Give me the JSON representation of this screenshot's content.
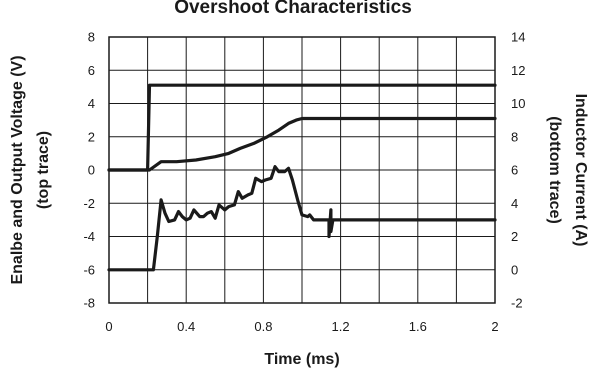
{
  "chart_data": {
    "type": "line",
    "title": "Overshoot Characteristics",
    "xlabel": "Time (ms)",
    "ylabel_left": [
      "Enalbe and Output Voltage (V)",
      "(top trace)"
    ],
    "ylabel_right": [
      "Inductor Current (A)",
      "(bottom trace)"
    ],
    "xlim": [
      0,
      2
    ],
    "ylim_left": [
      -8,
      8
    ],
    "ylim_right": [
      -2,
      14
    ],
    "x_ticks": [
      0,
      0.4,
      0.8,
      1.2,
      1.6,
      2
    ],
    "x_tick_labels": [
      "0",
      "0.4",
      "0.8",
      "1.2",
      "1.6",
      "2"
    ],
    "y_left_ticks": [
      8,
      6,
      4,
      2,
      0,
      -2,
      -4,
      -6,
      -8
    ],
    "y_left_tick_labels": [
      "8",
      "6",
      "4",
      "2",
      "0",
      "-2",
      "-4",
      "-6",
      "-8"
    ],
    "y_right_ticks": [
      14,
      12,
      10,
      8,
      6,
      4,
      2,
      0,
      -2
    ],
    "y_right_tick_labels": [
      "14",
      "12",
      "10",
      "8",
      "6",
      "4",
      "2",
      "0",
      "-2"
    ],
    "grid": true,
    "series": [
      {
        "axis": "left",
        "color": "#1a1a1a",
        "x": [
          0,
          0.2,
          0.21,
          2
        ],
        "y": [
          0,
          0,
          5.1,
          5.1
        ]
      },
      {
        "axis": "left",
        "color": "#1a1a1a",
        "x": [
          0,
          0.21,
          0.27,
          0.35,
          0.45,
          0.55,
          0.62,
          0.68,
          0.75,
          0.82,
          0.88,
          0.93,
          0.97,
          1.0,
          1.02,
          2
        ],
        "y": [
          0,
          0,
          0.5,
          0.5,
          0.6,
          0.8,
          1.0,
          1.3,
          1.6,
          2.0,
          2.4,
          2.8,
          3.0,
          3.1,
          3.1,
          3.1
        ]
      },
      {
        "axis": "right",
        "color": "#1a1a1a",
        "x": [
          0,
          0.23,
          0.25,
          0.27,
          0.29,
          0.31,
          0.34,
          0.36,
          0.38,
          0.4,
          0.42,
          0.44,
          0.47,
          0.49,
          0.51,
          0.53,
          0.55,
          0.57,
          0.6,
          0.62,
          0.65,
          0.67,
          0.69,
          0.72,
          0.74,
          0.76,
          0.79,
          0.81,
          0.84,
          0.86,
          0.88,
          0.91,
          0.93,
          0.95,
          0.98,
          1.0,
          1.03,
          1.04,
          1.06,
          1.1,
          1.14,
          1.14,
          1.15,
          1.15,
          1.16,
          1.18,
          2
        ],
        "y": [
          0,
          0,
          2.0,
          4.2,
          3.4,
          2.9,
          3.0,
          3.5,
          3.2,
          3.0,
          3.1,
          3.6,
          3.2,
          3.2,
          3.4,
          3.5,
          3.1,
          3.9,
          3.6,
          3.8,
          3.9,
          4.7,
          4.3,
          4.5,
          4.6,
          5.5,
          5.3,
          5.4,
          5.5,
          6.2,
          5.9,
          5.9,
          6.1,
          5.4,
          4.1,
          3.3,
          3.2,
          3.3,
          3.0,
          3.0,
          3.0,
          2.0,
          3.6,
          2.3,
          3.0,
          3.0,
          3.0
        ]
      }
    ]
  }
}
